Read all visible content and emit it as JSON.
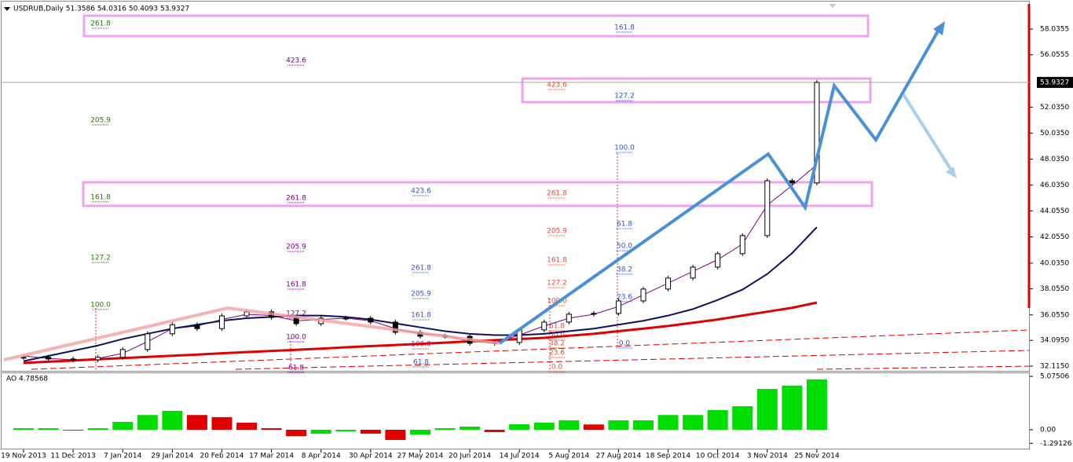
{
  "chart_data": [
    {
      "type": "candlestick",
      "title": "USDRUB,Daily 51.3586 54.0316 50.4093 53.9327",
      "values": [
        32.79,
        32.66,
        32.6,
        32.79,
        33.39,
        34.6,
        35.3,
        35.0,
        35.98,
        36.29,
        35.86,
        35.38,
        35.8,
        35.8,
        35.5,
        34.72,
        34.41,
        34.41,
        33.87,
        33.93,
        34.9,
        35.5,
        36.11,
        36.17,
        37.13,
        38.04,
        38.89,
        39.73,
        40.76,
        42.15,
        46.37,
        46.2,
        53.93
      ],
      "moving_averages": [
        {
          "color": "#800080",
          "values": [
            32.9,
            32.7,
            32.6,
            32.7,
            33.1,
            34.0,
            35.0,
            35.2,
            35.7,
            36.1,
            36.0,
            35.6,
            35.7,
            35.8,
            35.6,
            35.0,
            34.6,
            34.5,
            34.0,
            33.9,
            34.5,
            35.2,
            35.8,
            36.1,
            36.7,
            37.6,
            38.5,
            39.4,
            40.3,
            41.5,
            44.5,
            46.0,
            47.6
          ]
        },
        {
          "color": "#101060",
          "values": [
            32.5,
            32.9,
            33.3,
            33.7,
            34.2,
            34.6,
            35.0,
            35.3,
            35.6,
            35.8,
            35.9,
            36.0,
            36.0,
            35.9,
            35.7,
            35.4,
            35.1,
            34.8,
            34.6,
            34.5,
            34.5,
            34.6,
            34.8,
            35.0,
            35.3,
            35.6,
            36.0,
            36.5,
            37.2,
            38.0,
            39.2,
            40.8,
            42.8
          ]
        },
        {
          "color": "#e00000",
          "values": [
            32.36,
            32.45,
            32.54,
            32.64,
            32.73,
            32.82,
            32.91,
            33.0,
            33.1,
            33.19,
            33.28,
            33.37,
            33.46,
            33.56,
            33.65,
            33.74,
            33.83,
            33.92,
            34.02,
            34.11,
            34.2,
            34.29,
            34.45,
            34.6,
            34.8,
            35.0,
            35.2,
            35.45,
            35.7,
            36.0,
            36.3,
            36.6,
            37.0
          ]
        }
      ],
      "last_price": 53.9327,
      "ylim": [
        31.75,
        60.27
      ],
      "yticks": [
        58.0355,
        56.0555,
        {
          "value": 52.035,
          "label": "52.0350"
        },
        {
          "value": 50.035,
          "label": "50.0350"
        },
        {
          "value": 48.035,
          "label": "48.0350"
        },
        {
          "value": 46.035,
          "label": "46.0350"
        },
        {
          "value": 44.055,
          "label": "44.0550"
        },
        {
          "value": 42.055,
          "label": "42.0550"
        },
        {
          "value": 40.035,
          "label": "40.0350"
        },
        {
          "value": 38.055,
          "label": "38.0550"
        },
        {
          "value": 36.055,
          "label": "36.0550"
        },
        {
          "value": 34.095,
          "label": "34.0950"
        },
        {
          "value": 32.115,
          "label": "32.1150"
        }
      ],
      "fibonacci": [
        {
          "color": "#1f7a00",
          "levels": [
            {
              "price": 58.46,
              "text": "261.8"
            },
            {
              "price": 51.03,
              "text": "205.9"
            },
            {
              "price": 45.11,
              "text": "161.8"
            },
            {
              "price": 40.45,
              "text": "127.2"
            },
            {
              "price": 36.83,
              "text": "100.0"
            }
          ]
        },
        {
          "color": "#800080",
          "levels": [
            {
              "price": 55.62,
              "text": "423.6"
            },
            {
              "price": 45.05,
              "text": "261.8"
            },
            {
              "price": 41.3,
              "text": "205.9"
            },
            {
              "price": 38.4,
              "text": "161.8"
            },
            {
              "price": 36.16,
              "text": "127.2"
            },
            {
              "price": 34.35,
              "text": "100.0"
            },
            {
              "price": 32.0,
              "text": "61.8"
            }
          ]
        },
        {
          "color": "#3355cc",
          "levels": [
            {
              "price": 45.59,
              "text": "423.6"
            },
            {
              "price": 39.67,
              "text": "261.8"
            },
            {
              "price": 37.67,
              "text": "205.9"
            },
            {
              "price": 36.04,
              "text": "161.8"
            },
            {
              "price": 33.8,
              "text": "100.0"
            },
            {
              "price": 32.42,
              "text": "61.8"
            }
          ]
        },
        {
          "color": "#e0503c",
          "levels": [
            {
              "price": 53.75,
              "text": "423.6"
            },
            {
              "price": 45.41,
              "text": "261.8"
            },
            {
              "price": 42.51,
              "text": "205.9"
            },
            {
              "price": 40.27,
              "text": "161.8"
            },
            {
              "price": 38.52,
              "text": "127.2"
            },
            {
              "price": 37.13,
              "text": "100.0"
            },
            {
              "price": 35.2,
              "text": "61.8"
            },
            {
              "price": 34.53,
              "text": "50.0"
            },
            {
              "price": 33.87,
              "text": "38.2"
            },
            {
              "price": 33.14,
              "text": "23.6"
            },
            {
              "price": 32.05,
              "text": "0.0"
            }
          ]
        },
        {
          "color": "#3355cc",
          "levels": [
            {
              "price": 58.16,
              "text": "161.8"
            },
            {
              "price": 52.9,
              "text": "127.2"
            },
            {
              "price": 48.91,
              "text": "100.0"
            },
            {
              "price": 43.05,
              "text": "61.8"
            },
            {
              "price": 41.36,
              "text": "50.0"
            },
            {
              "price": 39.55,
              "text": "38.2"
            },
            {
              "price": 37.44,
              "text": "23.6"
            },
            {
              "price": 33.87,
              "text": "0.0"
            }
          ]
        }
      ]
    },
    {
      "type": "bar",
      "title": "AO 4.78568",
      "categories": [
        "19 Nov 2013",
        null,
        "11 Dec 2013",
        null,
        "7 Jan 2014",
        null,
        "29 Jan 2014",
        null,
        "20 Feb 2014",
        null,
        "17 Mar 2014",
        null,
        "8 Apr 2014",
        null,
        "30 Apr 2014",
        null,
        "27 May 2014",
        null,
        "20 Jun 2014",
        null,
        "14 Jul 2014",
        null,
        "5 Aug 2014",
        null,
        "27 Aug 2014",
        null,
        "18 Sep 2014",
        null,
        "10 Oct 2014",
        null,
        "3 Nov 2014",
        null,
        "25 Nov 2014"
      ],
      "values": [
        0.15,
        0.15,
        -0.07,
        0.15,
        0.75,
        1.4,
        1.8,
        1.4,
        1.2,
        0.67,
        0.15,
        -0.6,
        -0.37,
        -0.15,
        -0.37,
        -0.97,
        -0.45,
        0.15,
        0.3,
        -0.22,
        0.52,
        0.67,
        0.9,
        0.5,
        0.9,
        0.9,
        1.4,
        1.4,
        1.87,
        2.24,
        3.88,
        4.2,
        4.79
      ],
      "up_color": "#00dd00",
      "down_color": "#e00000",
      "ylim": [
        -1.87,
        5.45
      ],
      "yticks": [
        5.07506,
        {
          "value": 0,
          "label": "0.00"
        },
        -1.29126
      ]
    }
  ]
}
